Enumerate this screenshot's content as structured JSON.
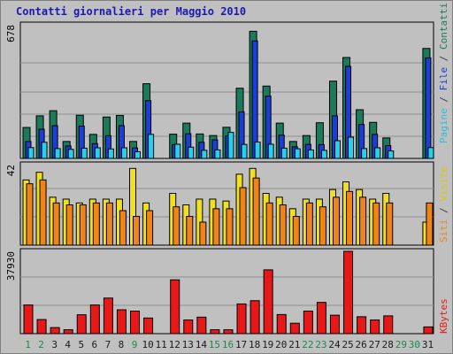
{
  "title": "Contatti giornalieri per Maggio 2010",
  "colors": {
    "pagine": "#1a7a5a",
    "file": "#1a3ed8",
    "contatti": "#28d0f0",
    "siti": "#f08418",
    "visite": "#f0e020",
    "kbytes": "#e81818",
    "weekday_label": "#1a8a4a",
    "weekend_label": "#1a1a1a",
    "day_label": "#1a8a4a"
  },
  "right_labels": {
    "top": [
      {
        "text": "Pagine",
        "color": "#28c0d8"
      },
      {
        "text": " / ",
        "color": "#404040"
      },
      {
        "text": "File",
        "color": "#1a3ed8"
      },
      {
        "text": " / ",
        "color": "#404040"
      },
      {
        "text": "Contatti",
        "color": "#1a7a5a"
      }
    ],
    "middle": [
      {
        "text": "Siti",
        "color": "#f08418"
      },
      {
        "text": " / ",
        "color": "#404040"
      },
      {
        "text": "Visite",
        "color": "#e0c800"
      }
    ],
    "bottom": [
      {
        "text": "KBytes",
        "color": "#e81818"
      }
    ]
  },
  "chart_data": [
    {
      "type": "bar",
      "panel": "contatti",
      "y_max_label": "678",
      "ylim": [
        0,
        678
      ],
      "categories": [
        "1",
        "2",
        "3",
        "4",
        "5",
        "6",
        "7",
        "8",
        "9",
        "10",
        "11",
        "12",
        "13",
        "14",
        "15",
        "16",
        "17",
        "18",
        "19",
        "20",
        "21",
        "22",
        "23",
        "24",
        "25",
        "26",
        "27",
        "28",
        "29",
        "30",
        "31"
      ],
      "series": [
        {
          "name": "Contatti",
          "values": [
            157,
            216,
            242,
            86,
            219,
            122,
            210,
            218,
            86,
            379,
            0,
            123,
            179,
            124,
            116,
            158,
            356,
            645,
            367,
            179,
            86,
            116,
            181,
            392,
            512,
            247,
            183,
            104,
            0,
            0,
            558
          ]
        },
        {
          "name": "File",
          "values": [
            86,
            148,
            166,
            63,
            164,
            75,
            115,
            166,
            53,
            293,
            0,
            70,
            125,
            82,
            94,
            114,
            236,
            596,
            316,
            118,
            59,
            71,
            70,
            216,
            467,
            172,
            122,
            65,
            0,
            0,
            510
          ]
        },
        {
          "name": "Pagine",
          "values": [
            55,
            82,
            50,
            46,
            52,
            54,
            48,
            54,
            34,
            122,
            0,
            72,
            57,
            41,
            43,
            132,
            71,
            83,
            72,
            52,
            49,
            43,
            41,
            90,
            108,
            50,
            54,
            38,
            0,
            0,
            55
          ]
        }
      ]
    },
    {
      "type": "bar",
      "panel": "visite",
      "y_max_label": "42",
      "ylim": [
        0,
        42
      ],
      "categories": [
        "1",
        "2",
        "3",
        "4",
        "5",
        "6",
        "7",
        "8",
        "9",
        "10",
        "11",
        "12",
        "13",
        "14",
        "15",
        "16",
        "17",
        "18",
        "19",
        "20",
        "21",
        "22",
        "23",
        "24",
        "25",
        "26",
        "27",
        "28",
        "29",
        "30",
        "31"
      ],
      "series": [
        {
          "name": "Visite",
          "values": [
            34,
            38,
            25,
            24,
            22,
            24,
            24,
            24,
            40,
            22,
            0,
            27,
            21,
            24,
            24,
            23,
            37,
            40,
            27,
            25,
            19,
            24,
            24,
            29,
            33,
            29,
            24,
            27,
            0,
            0,
            12
          ]
        },
        {
          "name": "Siti",
          "values": [
            32,
            34,
            22,
            21,
            21,
            22,
            22,
            18,
            15,
            18,
            0,
            20,
            15,
            12,
            19,
            19,
            30,
            35,
            22,
            21,
            15,
            22,
            20,
            25,
            28,
            25,
            22,
            22,
            0,
            0,
            22
          ]
        }
      ]
    },
    {
      "type": "bar",
      "panel": "kbytes",
      "y_max_label": "37930",
      "ylim": [
        0,
        37930
      ],
      "categories": [
        "1",
        "2",
        "3",
        "4",
        "5",
        "6",
        "7",
        "8",
        "9",
        "10",
        "11",
        "12",
        "13",
        "14",
        "15",
        "16",
        "17",
        "18",
        "19",
        "20",
        "21",
        "22",
        "23",
        "24",
        "25",
        "26",
        "27",
        "28",
        "29",
        "30",
        "31"
      ],
      "series": [
        {
          "name": "KBytes",
          "values": [
            13200,
            6500,
            2800,
            1800,
            8700,
            13200,
            16400,
            11000,
            10400,
            7200,
            0,
            24800,
            6300,
            7600,
            1800,
            1800,
            13700,
            15200,
            29400,
            8800,
            4800,
            10400,
            14400,
            8500,
            37930,
            7800,
            6300,
            8200,
            0,
            0,
            3100
          ]
        }
      ]
    }
  ]
}
